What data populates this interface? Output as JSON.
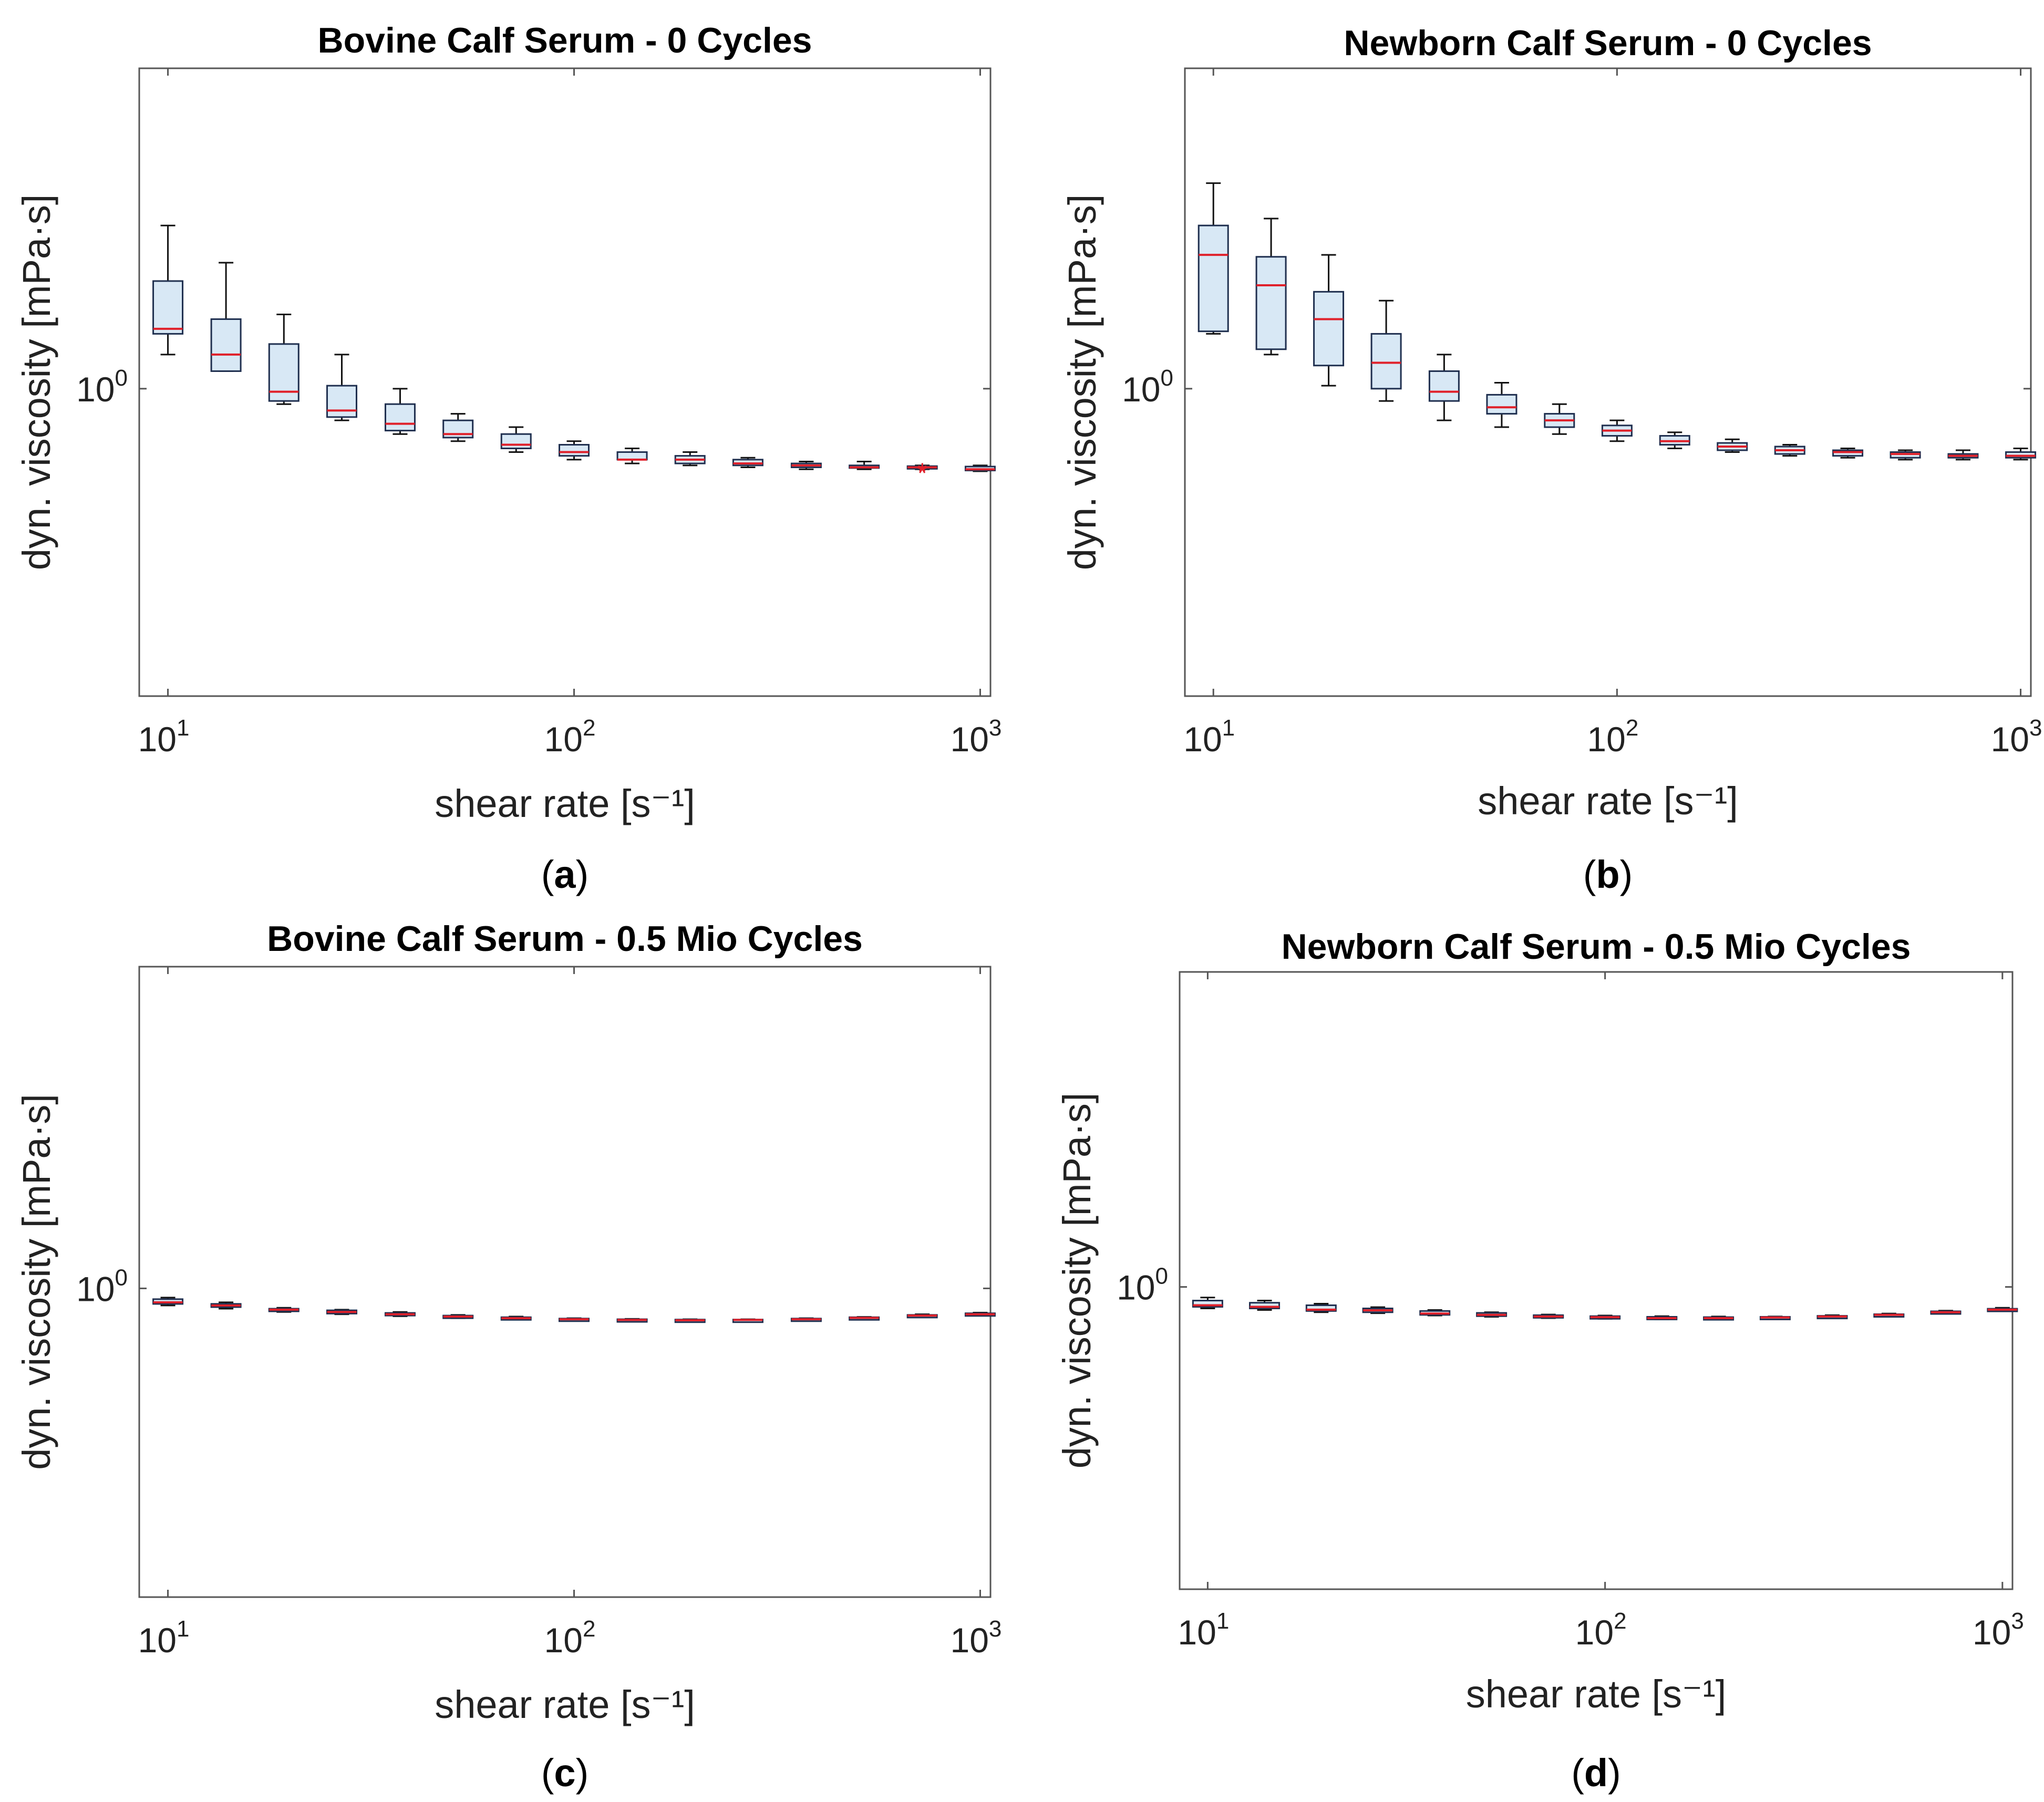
{
  "figure": {
    "colors": {
      "box_fill": "#d8e8f5",
      "box_edge": "#1f2f4f",
      "median": "#e0202a",
      "axis": "#555555",
      "outlier": "#e0202a"
    }
  },
  "chart_data": [
    {
      "type": "box",
      "panel_label": "(a)",
      "panel_letter": "a",
      "title": "Bovine Calf Serum - 0 Cycles",
      "xlabel": "shear rate [s⁻¹]",
      "ylabel": "dyn. viscosity [mPa·s]",
      "xscale": "log",
      "yscale": "log",
      "xlim": [
        8.5,
        1060
      ],
      "ylim": [
        0.36,
        2.9
      ],
      "xticks": [
        {
          "base": "10",
          "exp": "1",
          "value": 10
        },
        {
          "base": "10",
          "exp": "2",
          "value": 100
        },
        {
          "base": "10",
          "exp": "3",
          "value": 1000
        }
      ],
      "yticks": [
        {
          "base": "10",
          "exp": "0",
          "value": 1
        }
      ],
      "series": [
        {
          "x": 10.0,
          "min": 1.12,
          "q1": 1.2,
          "median": 1.22,
          "q3": 1.43,
          "max": 1.72
        },
        {
          "x": 13.9,
          "min": 1.06,
          "q1": 1.06,
          "median": 1.12,
          "q3": 1.26,
          "max": 1.52
        },
        {
          "x": 19.3,
          "min": 0.95,
          "q1": 0.96,
          "median": 0.99,
          "q3": 1.16,
          "max": 1.28
        },
        {
          "x": 26.8,
          "min": 0.9,
          "q1": 0.91,
          "median": 0.93,
          "q3": 1.01,
          "max": 1.12
        },
        {
          "x": 37.3,
          "min": 0.86,
          "q1": 0.87,
          "median": 0.89,
          "q3": 0.95,
          "max": 1.0
        },
        {
          "x": 51.8,
          "min": 0.84,
          "q1": 0.85,
          "median": 0.86,
          "q3": 0.9,
          "max": 0.92
        },
        {
          "x": 72.0,
          "min": 0.81,
          "q1": 0.82,
          "median": 0.83,
          "q3": 0.86,
          "max": 0.88
        },
        {
          "x": 100.0,
          "min": 0.79,
          "q1": 0.8,
          "median": 0.81,
          "q3": 0.83,
          "max": 0.84
        },
        {
          "x": 139.0,
          "min": 0.78,
          "q1": 0.79,
          "median": 0.79,
          "q3": 0.81,
          "max": 0.82
        },
        {
          "x": 193.0,
          "min": 0.775,
          "q1": 0.78,
          "median": 0.79,
          "q3": 0.8,
          "max": 0.81
        },
        {
          "x": 268.0,
          "min": 0.77,
          "q1": 0.775,
          "median": 0.78,
          "q3": 0.79,
          "max": 0.795
        },
        {
          "x": 373.0,
          "min": 0.765,
          "q1": 0.77,
          "median": 0.775,
          "q3": 0.78,
          "max": 0.785
        },
        {
          "x": 518.0,
          "min": 0.765,
          "q1": 0.77,
          "median": 0.77,
          "q3": 0.775,
          "max": 0.785
        },
        {
          "x": 720.0,
          "min": 0.765,
          "q1": 0.768,
          "median": 0.77,
          "q3": 0.773,
          "max": 0.775,
          "outliers": [
            0.758,
            0.762
          ]
        },
        {
          "x": 1000.0,
          "min": 0.76,
          "q1": 0.762,
          "median": 0.765,
          "q3": 0.772,
          "max": 0.775
        }
      ]
    },
    {
      "type": "box",
      "panel_label": "(b)",
      "panel_letter": "b",
      "title": "Newborn Calf Serum - 0 Cycles",
      "xlabel": "shear rate [s⁻¹]",
      "ylabel": "dyn. viscosity [mPa·s]",
      "xscale": "log",
      "yscale": "log",
      "xlim": [
        8.5,
        1060
      ],
      "ylim": [
        0.36,
        2.9
      ],
      "xticks": [
        {
          "base": "10",
          "exp": "1",
          "value": 10
        },
        {
          "base": "10",
          "exp": "2",
          "value": 100
        },
        {
          "base": "10",
          "exp": "3",
          "value": 1000
        }
      ],
      "yticks": [
        {
          "base": "10",
          "exp": "0",
          "value": 1
        }
      ],
      "series": [
        {
          "x": 10.0,
          "min": 1.2,
          "q1": 1.21,
          "median": 1.56,
          "q3": 1.72,
          "max": 1.98
        },
        {
          "x": 13.9,
          "min": 1.12,
          "q1": 1.14,
          "median": 1.41,
          "q3": 1.55,
          "max": 1.76
        },
        {
          "x": 19.3,
          "min": 1.01,
          "q1": 1.08,
          "median": 1.26,
          "q3": 1.38,
          "max": 1.56
        },
        {
          "x": 26.8,
          "min": 0.96,
          "q1": 1.0,
          "median": 1.09,
          "q3": 1.2,
          "max": 1.34
        },
        {
          "x": 37.3,
          "min": 0.9,
          "q1": 0.96,
          "median": 0.99,
          "q3": 1.06,
          "max": 1.12
        },
        {
          "x": 51.8,
          "min": 0.88,
          "q1": 0.92,
          "median": 0.94,
          "q3": 0.98,
          "max": 1.02
        },
        {
          "x": 72.0,
          "min": 0.86,
          "q1": 0.88,
          "median": 0.9,
          "q3": 0.92,
          "max": 0.95
        },
        {
          "x": 100.0,
          "min": 0.84,
          "q1": 0.855,
          "median": 0.87,
          "q3": 0.885,
          "max": 0.9
        },
        {
          "x": 139.0,
          "min": 0.82,
          "q1": 0.83,
          "median": 0.84,
          "q3": 0.855,
          "max": 0.865
        },
        {
          "x": 193.0,
          "min": 0.81,
          "q1": 0.815,
          "median": 0.825,
          "q3": 0.835,
          "max": 0.845
        },
        {
          "x": 268.0,
          "min": 0.8,
          "q1": 0.805,
          "median": 0.815,
          "q3": 0.825,
          "max": 0.83
        },
        {
          "x": 373.0,
          "min": 0.795,
          "q1": 0.8,
          "median": 0.81,
          "q3": 0.815,
          "max": 0.82
        },
        {
          "x": 518.0,
          "min": 0.79,
          "q1": 0.795,
          "median": 0.805,
          "q3": 0.81,
          "max": 0.815
        },
        {
          "x": 720.0,
          "min": 0.79,
          "q1": 0.795,
          "median": 0.8,
          "q3": 0.805,
          "max": 0.815
        },
        {
          "x": 1000.0,
          "min": 0.79,
          "q1": 0.795,
          "median": 0.8,
          "q3": 0.81,
          "max": 0.82
        }
      ]
    },
    {
      "type": "box",
      "panel_label": "(c)",
      "panel_letter": "c",
      "title": "Bovine Calf Serum - 0.5 Mio Cycles",
      "xlabel": "shear rate [s⁻¹]",
      "ylabel": "dyn. viscosity [mPa·s]",
      "xscale": "log",
      "yscale": "log",
      "xlim": [
        8.5,
        1060
      ],
      "ylim": [
        0.36,
        2.9
      ],
      "xticks": [
        {
          "base": "10",
          "exp": "1",
          "value": 10
        },
        {
          "base": "10",
          "exp": "2",
          "value": 100
        },
        {
          "base": "10",
          "exp": "3",
          "value": 1000
        }
      ],
      "yticks": [
        {
          "base": "10",
          "exp": "0",
          "value": 1
        }
      ],
      "series": [
        {
          "x": 10.0,
          "min": 0.945,
          "q1": 0.95,
          "median": 0.955,
          "q3": 0.965,
          "max": 0.97
        },
        {
          "x": 13.9,
          "min": 0.935,
          "q1": 0.94,
          "median": 0.945,
          "q3": 0.95,
          "max": 0.955
        },
        {
          "x": 19.3,
          "min": 0.925,
          "q1": 0.928,
          "median": 0.932,
          "q3": 0.935,
          "max": 0.938
        },
        {
          "x": 26.8,
          "min": 0.918,
          "q1": 0.92,
          "median": 0.925,
          "q3": 0.93,
          "max": 0.932
        },
        {
          "x": 37.3,
          "min": 0.912,
          "q1": 0.914,
          "median": 0.918,
          "q3": 0.922,
          "max": 0.925
        },
        {
          "x": 51.8,
          "min": 0.906,
          "q1": 0.908,
          "median": 0.911,
          "q3": 0.914,
          "max": 0.916
        },
        {
          "x": 72.0,
          "min": 0.902,
          "q1": 0.904,
          "median": 0.906,
          "q3": 0.909,
          "max": 0.911
        },
        {
          "x": 100.0,
          "min": 0.9,
          "q1": 0.901,
          "median": 0.903,
          "q3": 0.905,
          "max": 0.906
        },
        {
          "x": 139.0,
          "min": 0.899,
          "q1": 0.9,
          "median": 0.901,
          "q3": 0.903,
          "max": 0.904
        },
        {
          "x": 193.0,
          "min": 0.898,
          "q1": 0.899,
          "median": 0.9,
          "q3": 0.902,
          "max": 0.903
        },
        {
          "x": 268.0,
          "min": 0.898,
          "q1": 0.899,
          "median": 0.901,
          "q3": 0.902,
          "max": 0.903
        },
        {
          "x": 373.0,
          "min": 0.9,
          "q1": 0.901,
          "median": 0.903,
          "q3": 0.905,
          "max": 0.906
        },
        {
          "x": 518.0,
          "min": 0.904,
          "q1": 0.905,
          "median": 0.907,
          "q3": 0.909,
          "max": 0.91
        },
        {
          "x": 720.0,
          "min": 0.91,
          "q1": 0.912,
          "median": 0.914,
          "q3": 0.916,
          "max": 0.918
        },
        {
          "x": 1000.0,
          "min": 0.914,
          "q1": 0.916,
          "median": 0.918,
          "q3": 0.921,
          "max": 0.923
        }
      ]
    },
    {
      "type": "box",
      "panel_label": "(d)",
      "panel_letter": "d",
      "title": "Newborn Calf Serum - 0.5 Mio Cycles",
      "xlabel": "shear rate [s⁻¹]",
      "ylabel": "dyn. viscosity [mPa·s]",
      "xscale": "log",
      "yscale": "log",
      "xlim": [
        8.5,
        1060
      ],
      "ylim": [
        0.36,
        2.9
      ],
      "xticks": [
        {
          "base": "10",
          "exp": "1",
          "value": 10
        },
        {
          "base": "10",
          "exp": "2",
          "value": 100
        },
        {
          "base": "10",
          "exp": "3",
          "value": 1000
        }
      ],
      "yticks": [
        {
          "base": "10",
          "exp": "0",
          "value": 1
        }
      ],
      "series": [
        {
          "x": 10.0,
          "min": 0.93,
          "q1": 0.935,
          "median": 0.94,
          "q3": 0.955,
          "max": 0.965
        },
        {
          "x": 13.9,
          "min": 0.925,
          "q1": 0.93,
          "median": 0.935,
          "q3": 0.948,
          "max": 0.955
        },
        {
          "x": 19.3,
          "min": 0.918,
          "q1": 0.922,
          "median": 0.926,
          "q3": 0.94,
          "max": 0.945
        },
        {
          "x": 26.8,
          "min": 0.915,
          "q1": 0.918,
          "median": 0.924,
          "q3": 0.93,
          "max": 0.934
        },
        {
          "x": 37.3,
          "min": 0.908,
          "q1": 0.91,
          "median": 0.914,
          "q3": 0.922,
          "max": 0.925
        },
        {
          "x": 51.8,
          "min": 0.904,
          "q1": 0.906,
          "median": 0.91,
          "q3": 0.916,
          "max": 0.918
        },
        {
          "x": 72.0,
          "min": 0.9,
          "q1": 0.902,
          "median": 0.905,
          "q3": 0.909,
          "max": 0.911
        },
        {
          "x": 100.0,
          "min": 0.898,
          "q1": 0.9,
          "median": 0.903,
          "q3": 0.906,
          "max": 0.908
        },
        {
          "x": 139.0,
          "min": 0.896,
          "q1": 0.898,
          "median": 0.9,
          "q3": 0.904,
          "max": 0.906
        },
        {
          "x": 193.0,
          "min": 0.896,
          "q1": 0.898,
          "median": 0.9,
          "q3": 0.903,
          "max": 0.905
        },
        {
          "x": 268.0,
          "min": 0.898,
          "q1": 0.9,
          "median": 0.902,
          "q3": 0.904,
          "max": 0.905
        },
        {
          "x": 373.0,
          "min": 0.902,
          "q1": 0.903,
          "median": 0.905,
          "q3": 0.907,
          "max": 0.909
        },
        {
          "x": 518.0,
          "min": 0.906,
          "q1": 0.908,
          "median": 0.91,
          "q3": 0.912,
          "max": 0.914
        },
        {
          "x": 720.0,
          "min": 0.914,
          "q1": 0.916,
          "median": 0.918,
          "q3": 0.921,
          "max": 0.923
        },
        {
          "x": 1000.0,
          "min": 0.922,
          "q1": 0.924,
          "median": 0.926,
          "q3": 0.929,
          "max": 0.932
        }
      ]
    }
  ]
}
